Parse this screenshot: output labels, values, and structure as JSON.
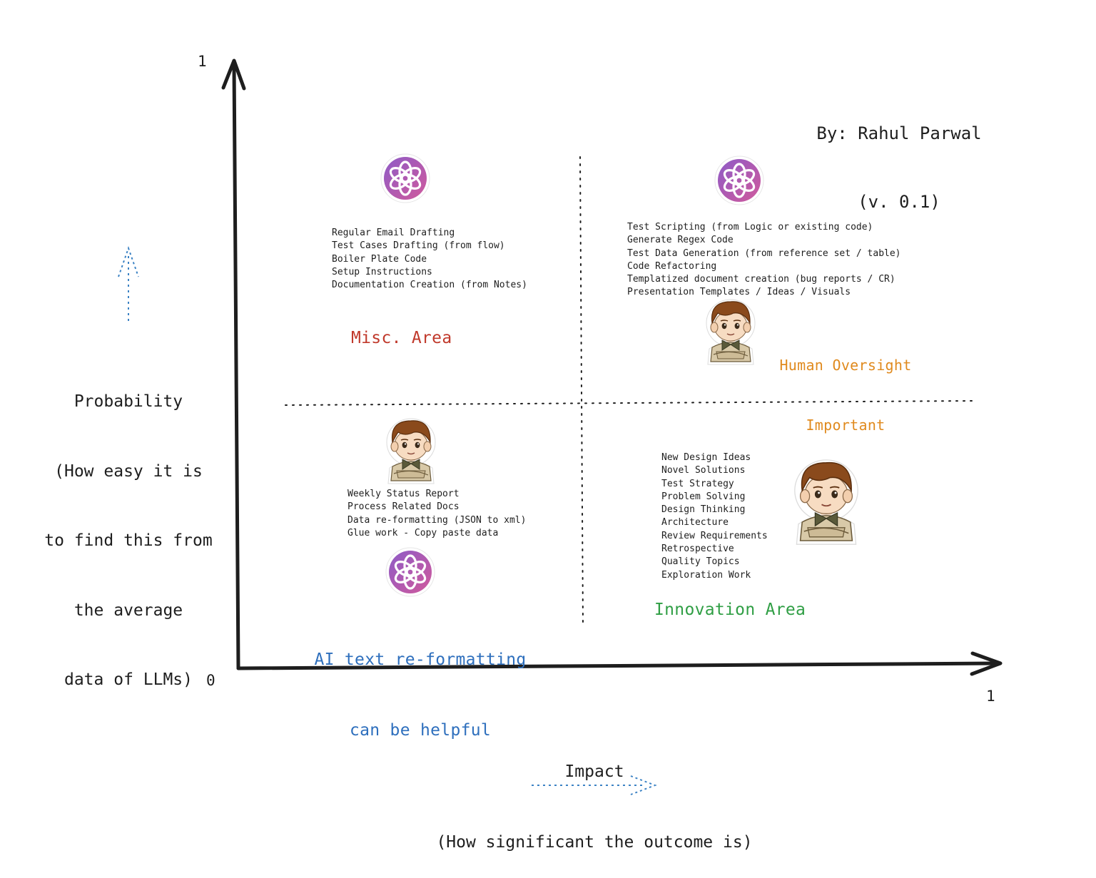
{
  "author": {
    "line1": "By: Rahul Parwal",
    "line2": "(v. 0.1)"
  },
  "axes": {
    "y_label_lines": [
      "Probability",
      "(How easy it is",
      "to find this from",
      "the average",
      "data of LLMs)"
    ],
    "x_label_lines": [
      "Impact",
      "(How significant the outcome is)"
    ],
    "y_max_tick": "1",
    "origin_tick": "0",
    "x_max_tick": "1"
  },
  "quadrants": {
    "top_left": {
      "items": [
        "Regular Email Drafting",
        "Test Cases Drafting (from flow)",
        "Boiler Plate Code",
        "Setup Instructions",
        "Documentation Creation (from Notes)"
      ],
      "label": "Misc. Area",
      "color": "#c0392b",
      "icons": [
        "openai-logo-icon"
      ]
    },
    "top_right": {
      "items": [
        "Test Scripting (from Logic or existing code)",
        "Generate Regex Code",
        "Test Data Generation (from reference set / table)",
        "Code Refactoring",
        "Templatized document creation (bug reports / CR)",
        "Presentation Templates / Ideas / Visuals"
      ],
      "label_lines": [
        "Human Oversight",
        "Important"
      ],
      "color": "#e67e22",
      "icons": [
        "openai-logo-icon",
        "boy-character-icon"
      ]
    },
    "bottom_left": {
      "items": [
        "Weekly Status Report",
        "Process Related Docs",
        "Data re-formatting (JSON to xml)",
        "Glue work - Copy paste data"
      ],
      "label_lines": [
        "AI text re-formatting",
        "can be helpful"
      ],
      "color": "#2e6fbd",
      "icons": [
        "boy-character-icon",
        "openai-logo-icon"
      ]
    },
    "bottom_right": {
      "items": [
        "New Design Ideas",
        "Novel Solutions",
        "Test Strategy",
        "Problem Solving",
        "Design Thinking",
        "Architecture",
        "Review Requirements",
        "Retrospective",
        "Quality Topics",
        "Exploration Work"
      ],
      "label": "Innovation Area",
      "color": "#2f9e44",
      "icons": [
        "boy-character-icon"
      ]
    }
  },
  "colors": {
    "axis": "#1e1e1e",
    "divider": "#1e1e1e",
    "hint_arrow": "#3b82c4",
    "openai_logo": "#a855a8"
  }
}
